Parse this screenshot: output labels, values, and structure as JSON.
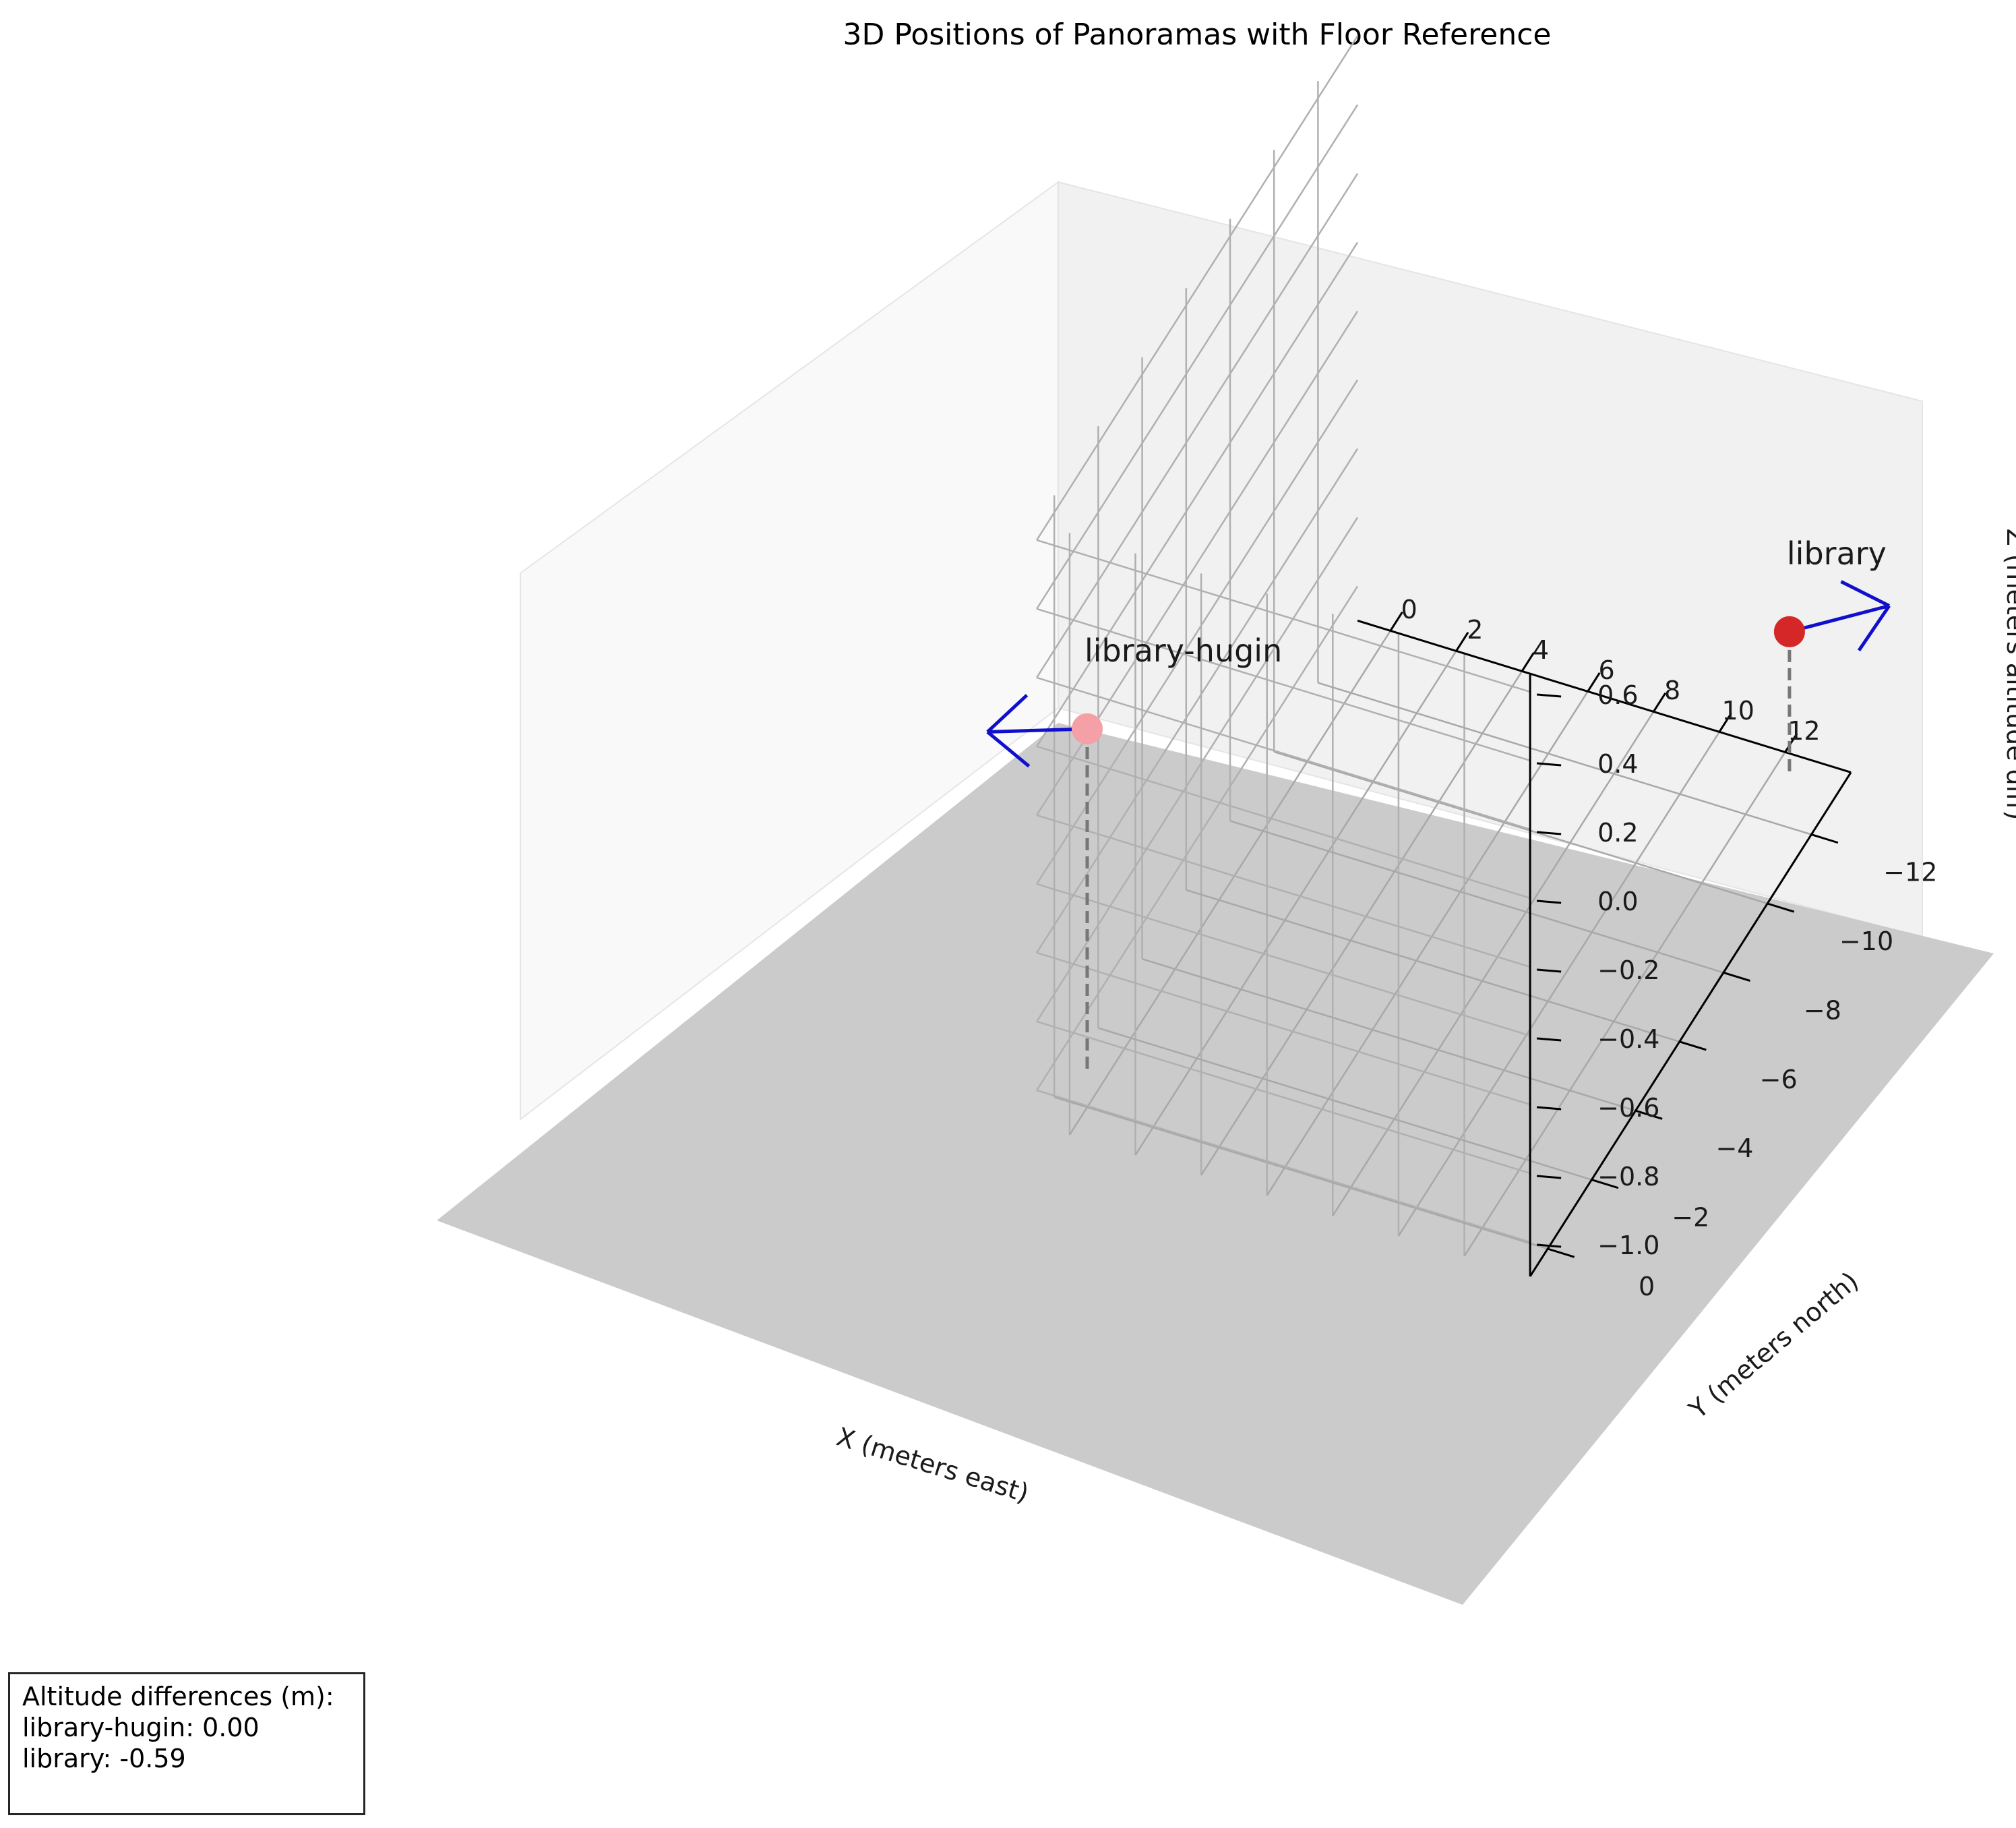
{
  "chart_data": {
    "type": "scatter3d",
    "title": "3D Positions of Panoramas with Floor Reference",
    "xlabel": "X (meters east)",
    "ylabel": "Y (meters north)",
    "zlabel": "Z (meters altitude diff)",
    "xticks": [
      "0",
      "2",
      "4",
      "6",
      "8",
      "10",
      "12"
    ],
    "yticks": [
      "0",
      "−2",
      "−4",
      "−6",
      "−8",
      "−10",
      "−12"
    ],
    "zticks": [
      "0.6",
      "0.4",
      "0.2",
      "0.0",
      "−0.2",
      "−0.4",
      "−0.6",
      "−0.8",
      "−1.0"
    ],
    "xlim": [
      -1,
      14
    ],
    "ylim": [
      -13.8,
      0.8
    ],
    "zlim": [
      -1.1,
      0.65
    ],
    "floor_z": -1.0,
    "grid": true,
    "points": [
      {
        "name": "library-hugin",
        "x": 0.0,
        "y": 0.0,
        "z": 0.0,
        "color": "#f4a0a6",
        "heading": "west"
      },
      {
        "name": "library",
        "x": 13.0,
        "y": -12.5,
        "z": -0.59,
        "color": "#d62728",
        "heading": "east"
      }
    ],
    "arrow_color": "#1010cc",
    "drop_line_color": "#777777"
  },
  "info_box": {
    "heading": "Altitude differences (m):",
    "lines": [
      "library-hugin: 0.00",
      "library: -0.59"
    ]
  }
}
